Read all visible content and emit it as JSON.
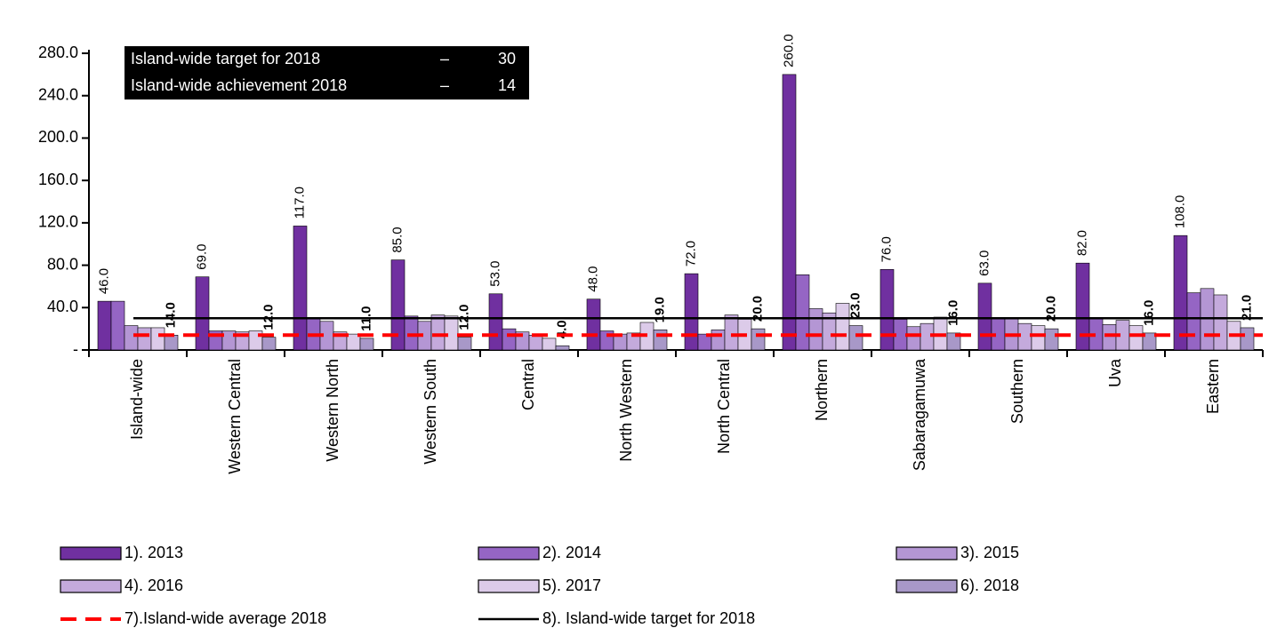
{
  "chart_data": {
    "type": "bar",
    "categories": [
      "Island-wide",
      "Western Central",
      "Western  North",
      "Western  South",
      "Central",
      "North Western",
      "North Central",
      "Northern",
      "Sabaragamuwa",
      "Southern",
      "Uva",
      "Eastern"
    ],
    "series": [
      {
        "name": "1). 2013",
        "color": "#7030a0",
        "values": [
          46,
          69,
          117,
          85,
          53,
          48,
          72,
          260,
          76,
          63,
          82,
          108
        ],
        "value_labels": [
          "46.0",
          "69.0",
          "117.0",
          "85.0",
          "53.0",
          "48.0",
          "72.0",
          "260.0",
          "76.0",
          "63.0",
          "82.0",
          "108.0"
        ]
      },
      {
        "name": "2). 2014",
        "color": "#9565c4",
        "values": [
          46,
          18,
          30,
          32,
          20,
          18,
          15,
          71,
          29,
          30,
          30,
          54
        ]
      },
      {
        "name": "3). 2015",
        "color": "#b496d4",
        "values": [
          23,
          18,
          27,
          27,
          17,
          15,
          19,
          39,
          22,
          30,
          24,
          58
        ]
      },
      {
        "name": "4). 2016",
        "color": "#c4aadc",
        "values": [
          21,
          17,
          17,
          33,
          14,
          16,
          33,
          35,
          25,
          25,
          28,
          52
        ]
      },
      {
        "name": "5). 2017",
        "color": "#dccbe9",
        "values": [
          21,
          18,
          15,
          32,
          11,
          26,
          29,
          44,
          31,
          23,
          23,
          27
        ]
      },
      {
        "name": "6). 2018",
        "color": "#a898c8",
        "values": [
          14,
          12,
          11,
          12,
          4,
          19,
          20,
          23,
          16,
          20,
          16,
          21
        ],
        "value_labels": [
          "14.0",
          "12.0",
          "11.0",
          "12.0",
          "4.0",
          "19.0",
          "20.0",
          "23.0",
          "16.0",
          "20.0",
          "16.0",
          "21.0"
        ]
      }
    ],
    "lines": [
      {
        "name": "7).Island-wide average 2018",
        "color": "#ff0000",
        "value": 14,
        "dashed": true
      },
      {
        "name": "8). Island-wide target for 2018",
        "color": "#000000",
        "value": 30,
        "dashed": false
      }
    ],
    "annotations": [
      [
        "Island-wide target for 2018",
        "–",
        "30"
      ],
      [
        "Island-wide achievement 2018",
        "–",
        "14"
      ]
    ],
    "ylim": [
      0,
      280
    ],
    "yticks": [
      {
        "value": 0,
        "label": "-"
      },
      {
        "value": 40,
        "label": "40.0"
      },
      {
        "value": 80,
        "label": "80.0"
      },
      {
        "value": 120,
        "label": "120.0"
      },
      {
        "value": 160,
        "label": "160.0"
      },
      {
        "value": 200,
        "label": "200.0"
      },
      {
        "value": 240,
        "label": "240.0"
      },
      {
        "value": 280,
        "label": "280.0"
      }
    ]
  }
}
